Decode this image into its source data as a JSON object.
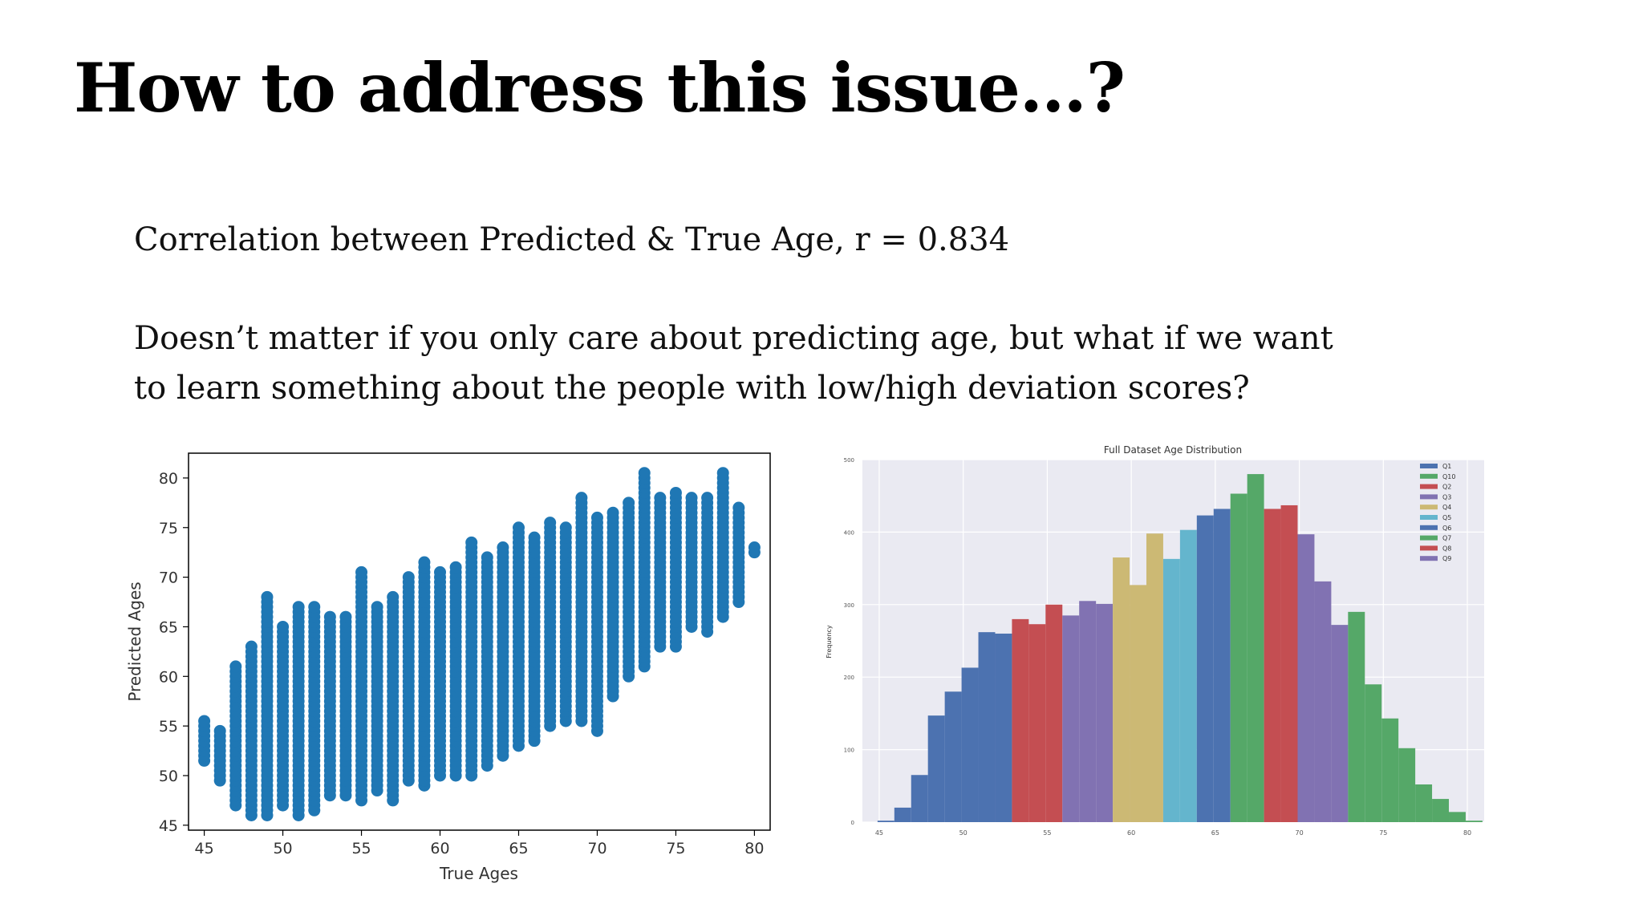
{
  "slide": {
    "title": "How to address this issue…?",
    "line1": "Correlation between Predicted & True Age, r = 0.834",
    "line2": "Doesn’t matter if you only care about predicting age, but what if we want",
    "line3": "to learn something about the people with low/high deviation scores?"
  },
  "chart_data": [
    {
      "type": "scatter",
      "title": "",
      "xlabel": "True Ages",
      "ylabel": "Predicted Ages",
      "xlim": [
        44,
        81
      ],
      "ylim": [
        44.5,
        82.5
      ],
      "xticks": [
        45,
        50,
        55,
        60,
        65,
        70,
        75,
        80
      ],
      "yticks": [
        45,
        50,
        55,
        60,
        65,
        70,
        75,
        80
      ],
      "color": "#1f77b4",
      "columns": [
        {
          "x": 45,
          "y_min": 51.5,
          "y_max": 55.5
        },
        {
          "x": 46,
          "y_min": 49.5,
          "y_max": 54.5
        },
        {
          "x": 47,
          "y_min": 47,
          "y_max": 61
        },
        {
          "x": 48,
          "y_min": 46,
          "y_max": 63
        },
        {
          "x": 49,
          "y_min": 46,
          "y_max": 68
        },
        {
          "x": 50,
          "y_min": 47,
          "y_max": 65
        },
        {
          "x": 51,
          "y_min": 46,
          "y_max": 67
        },
        {
          "x": 52,
          "y_min": 46.5,
          "y_max": 67
        },
        {
          "x": 53,
          "y_min": 48,
          "y_max": 66
        },
        {
          "x": 54,
          "y_min": 48,
          "y_max": 66
        },
        {
          "x": 55,
          "y_min": 47.5,
          "y_max": 70.5
        },
        {
          "x": 56,
          "y_min": 48.5,
          "y_max": 67
        },
        {
          "x": 57,
          "y_min": 47.5,
          "y_max": 68
        },
        {
          "x": 58,
          "y_min": 49.5,
          "y_max": 70
        },
        {
          "x": 59,
          "y_min": 49,
          "y_max": 71.5
        },
        {
          "x": 60,
          "y_min": 50,
          "y_max": 70.5
        },
        {
          "x": 61,
          "y_min": 50,
          "y_max": 71
        },
        {
          "x": 62,
          "y_min": 50,
          "y_max": 73.5
        },
        {
          "x": 63,
          "y_min": 51,
          "y_max": 72
        },
        {
          "x": 64,
          "y_min": 52,
          "y_max": 73
        },
        {
          "x": 65,
          "y_min": 53,
          "y_max": 75
        },
        {
          "x": 66,
          "y_min": 53.5,
          "y_max": 74
        },
        {
          "x": 67,
          "y_min": 55,
          "y_max": 75.5
        },
        {
          "x": 68,
          "y_min": 55.5,
          "y_max": 75
        },
        {
          "x": 69,
          "y_min": 55.5,
          "y_max": 78
        },
        {
          "x": 70,
          "y_min": 54.5,
          "y_max": 76
        },
        {
          "x": 71,
          "y_min": 58,
          "y_max": 76.5
        },
        {
          "x": 72,
          "y_min": 60,
          "y_max": 77.5
        },
        {
          "x": 73,
          "y_min": 61,
          "y_max": 80.5
        },
        {
          "x": 74,
          "y_min": 63,
          "y_max": 78
        },
        {
          "x": 75,
          "y_min": 63,
          "y_max": 78.5
        },
        {
          "x": 76,
          "y_min": 65,
          "y_max": 78
        },
        {
          "x": 77,
          "y_min": 64.5,
          "y_max": 78
        },
        {
          "x": 78,
          "y_min": 66,
          "y_max": 80.5
        },
        {
          "x": 79,
          "y_min": 67.5,
          "y_max": 77
        },
        {
          "x": 80,
          "y_min": 72.5,
          "y_max": 73
        }
      ]
    },
    {
      "type": "bar",
      "title": "Full Dataset Age Distribution",
      "xlabel": "",
      "ylabel": "Frequency",
      "xlim": [
        44,
        81
      ],
      "ylim": [
        0,
        500
      ],
      "xticks": [
        45,
        50,
        55,
        60,
        65,
        70,
        75,
        80
      ],
      "yticks": [
        0,
        100,
        200,
        300,
        400,
        500
      ],
      "grid": true,
      "legend_position": "top-right",
      "series": [
        {
          "name": "Q1",
          "color": "#4c72b0"
        },
        {
          "name": "Q10",
          "color": "#55a868"
        },
        {
          "name": "Q2",
          "color": "#c44e52"
        },
        {
          "name": "Q3",
          "color": "#8172b2"
        },
        {
          "name": "Q4",
          "color": "#ccb974"
        },
        {
          "name": "Q5",
          "color": "#64b5cd"
        },
        {
          "name": "Q6",
          "color": "#4c72b0"
        },
        {
          "name": "Q7",
          "color": "#55a868"
        },
        {
          "name": "Q8",
          "color": "#c44e52"
        },
        {
          "name": "Q9",
          "color": "#8172b2"
        }
      ],
      "bins": [
        {
          "start": 44.9,
          "end": 45.9,
          "value": 2,
          "series": "Q1"
        },
        {
          "start": 45.9,
          "end": 46.9,
          "value": 20,
          "series": "Q1"
        },
        {
          "start": 46.9,
          "end": 47.9,
          "value": 65,
          "series": "Q1"
        },
        {
          "start": 47.9,
          "end": 48.9,
          "value": 147,
          "series": "Q1"
        },
        {
          "start": 48.9,
          "end": 49.9,
          "value": 180,
          "series": "Q1"
        },
        {
          "start": 49.9,
          "end": 50.9,
          "value": 213,
          "series": "Q1"
        },
        {
          "start": 50.9,
          "end": 51.9,
          "value": 262,
          "series": "Q1"
        },
        {
          "start": 51.9,
          "end": 52.9,
          "value": 260,
          "series": "Q1"
        },
        {
          "start": 52.9,
          "end": 53.9,
          "value": 280,
          "series": "Q2"
        },
        {
          "start": 53.9,
          "end": 54.9,
          "value": 273,
          "series": "Q2"
        },
        {
          "start": 54.9,
          "end": 55.9,
          "value": 300,
          "series": "Q2"
        },
        {
          "start": 55.9,
          "end": 56.9,
          "value": 285,
          "series": "Q3"
        },
        {
          "start": 56.9,
          "end": 57.9,
          "value": 305,
          "series": "Q3"
        },
        {
          "start": 57.9,
          "end": 58.9,
          "value": 301,
          "series": "Q3"
        },
        {
          "start": 58.9,
          "end": 59.9,
          "value": 365,
          "series": "Q4"
        },
        {
          "start": 59.9,
          "end": 60.9,
          "value": 327,
          "series": "Q4"
        },
        {
          "start": 60.9,
          "end": 61.9,
          "value": 398,
          "series": "Q4"
        },
        {
          "start": 61.9,
          "end": 62.9,
          "value": 363,
          "series": "Q5"
        },
        {
          "start": 62.9,
          "end": 63.9,
          "value": 403,
          "series": "Q5"
        },
        {
          "start": 63.9,
          "end": 64.9,
          "value": 423,
          "series": "Q6"
        },
        {
          "start": 64.9,
          "end": 65.9,
          "value": 432,
          "series": "Q6"
        },
        {
          "start": 65.9,
          "end": 66.9,
          "value": 453,
          "series": "Q7"
        },
        {
          "start": 66.9,
          "end": 67.9,
          "value": 480,
          "series": "Q7"
        },
        {
          "start": 67.9,
          "end": 68.9,
          "value": 432,
          "series": "Q8"
        },
        {
          "start": 68.9,
          "end": 69.9,
          "value": 437,
          "series": "Q8"
        },
        {
          "start": 69.9,
          "end": 70.9,
          "value": 397,
          "series": "Q9"
        },
        {
          "start": 70.9,
          "end": 71.9,
          "value": 332,
          "series": "Q9"
        },
        {
          "start": 71.9,
          "end": 72.9,
          "value": 272,
          "series": "Q9"
        },
        {
          "start": 72.9,
          "end": 73.9,
          "value": 290,
          "series": "Q10"
        },
        {
          "start": 73.9,
          "end": 74.9,
          "value": 190,
          "series": "Q10"
        },
        {
          "start": 74.9,
          "end": 75.9,
          "value": 143,
          "series": "Q10"
        },
        {
          "start": 75.9,
          "end": 76.9,
          "value": 102,
          "series": "Q10"
        },
        {
          "start": 76.9,
          "end": 77.9,
          "value": 52,
          "series": "Q10"
        },
        {
          "start": 77.9,
          "end": 78.9,
          "value": 32,
          "series": "Q10"
        },
        {
          "start": 78.9,
          "end": 79.9,
          "value": 14,
          "series": "Q10"
        },
        {
          "start": 79.9,
          "end": 80.9,
          "value": 2,
          "series": "Q10"
        }
      ]
    }
  ]
}
